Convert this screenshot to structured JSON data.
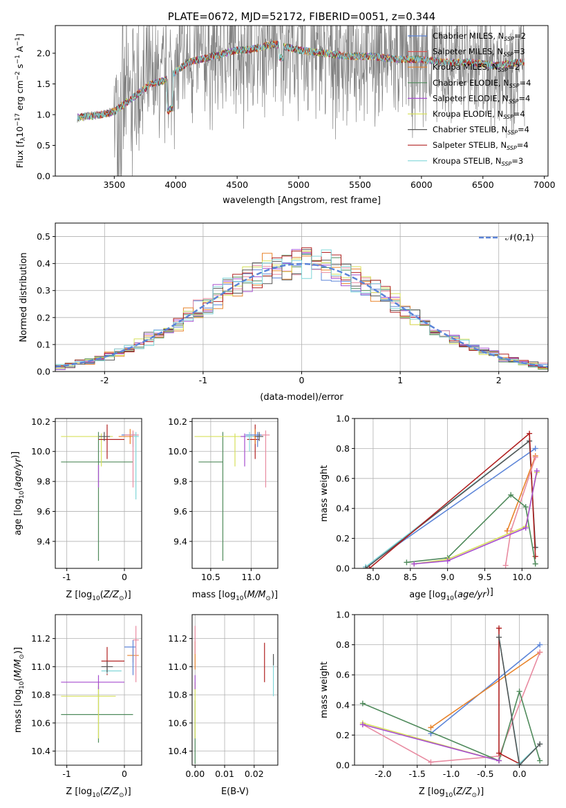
{
  "figure": {
    "background": "#ffffff"
  },
  "chart_data": [
    {
      "id": "spectrum",
      "type": "line",
      "title": "PLATE=0672, MJD=52172, FIBERID=0051, z=0.344",
      "xlabel": "wavelength [Angstrom, rest frame]",
      "ylabel": "Flux [f_λ10^-17 erg cm^-2 s^-1 A^-1]",
      "xlim": [
        3020,
        7030
      ],
      "ylim": [
        0,
        2.45
      ],
      "xticks": [
        3500,
        4000,
        4500,
        5000,
        5500,
        6000,
        6500,
        7000
      ],
      "yticks": [
        0.0,
        0.5,
        1.0,
        1.5,
        2.0
      ],
      "grid": false,
      "legend_position": "top-right",
      "data_color": "#808080",
      "data_continuum": {
        "x": [
          3200,
          3300,
          3400,
          3500,
          3600,
          3700,
          3800,
          3900,
          4000,
          4100,
          4200,
          4300,
          4400,
          4500,
          4600,
          4700,
          4800,
          4900,
          5000,
          5200,
          5400,
          5600,
          5800,
          6000,
          6200,
          6400,
          6600,
          6800
        ],
        "y": [
          0.95,
          0.98,
          1.0,
          1.05,
          1.2,
          1.35,
          1.5,
          1.55,
          1.7,
          1.85,
          1.9,
          1.95,
          2.0,
          2.05,
          2.05,
          2.1,
          2.15,
          2.1,
          2.05,
          2.0,
          1.95,
          1.95,
          1.9,
          1.9,
          1.85,
          1.85,
          1.8,
          1.85
        ]
      },
      "series": [
        {
          "name": "Chabrier MILES, N_SSP=2",
          "color": "#5b84d8"
        },
        {
          "name": "Salpeter MILES, N_SSP=3",
          "color": "#d9534f"
        },
        {
          "name": "Kroupa MILES, N_SSP=2",
          "color": "#e8832a"
        },
        {
          "name": "Chabrier ELODIE, N_SSP=4",
          "color": "#4f8a5b"
        },
        {
          "name": "Salpeter ELODIE, N_SSP=4",
          "color": "#a64ccf"
        },
        {
          "name": "Kroupa ELODIE, N_SSP=4",
          "color": "#d6e05a"
        },
        {
          "name": "Chabrier STELIB, N_SSP=4",
          "color": "#555555"
        },
        {
          "name": "Salpeter STELIB, N_SSP=4",
          "color": "#b02020"
        },
        {
          "name": "Kroupa STELIB, N_SSP=3",
          "color": "#7fd6d8"
        }
      ]
    },
    {
      "id": "residuals",
      "type": "histogram",
      "xlabel": "(data-model)/error",
      "ylabel": "Normed distribution",
      "xlim": [
        -2.5,
        2.5
      ],
      "ylim": [
        0,
        0.55
      ],
      "xticks": [
        -2,
        -1,
        0,
        1,
        2
      ],
      "yticks": [
        0.0,
        0.1,
        0.2,
        0.3,
        0.4,
        0.5
      ],
      "grid": true,
      "legend_position": "top-right",
      "reference": {
        "name": "𝒩(0,1)",
        "color": "#5b84d8",
        "mean": 0,
        "sigma": 1
      },
      "bin_width": 0.1,
      "colors": [
        "#5b84d8",
        "#e88aa0",
        "#e8832a",
        "#4f8a5b",
        "#a64ccf",
        "#d6e05a",
        "#555555",
        "#b02020",
        "#7fd6d8"
      ]
    },
    {
      "id": "age_vs_Z",
      "type": "errorbar",
      "xlabel": "Z [log10(Z/Z⊙)]",
      "ylabel": "age [log10(age/yr)]",
      "xlim": [
        -1.2,
        0.3
      ],
      "ylim": [
        9.22,
        10.22
      ],
      "xticks": [
        -1,
        0
      ],
      "yticks": [
        9.4,
        9.6,
        9.8,
        10.0,
        10.2
      ],
      "grid": true,
      "points": [
        {
          "color": "#4f8a5b",
          "x": -0.45,
          "xerr": [
            0.65,
            0.6
          ],
          "y": 9.93,
          "yerr": [
            0.66,
            0.2
          ]
        },
        {
          "color": "#d6e05a",
          "x": -0.4,
          "xerr": [
            0.7,
            0.2
          ],
          "y": 10.1,
          "yerr": [
            0.2,
            0.02
          ]
        },
        {
          "color": "#a64ccf",
          "x": -0.45,
          "xerr": [
            0.0,
            0.0
          ],
          "y": 9.83,
          "yerr": [
            0.07,
            0.08
          ]
        },
        {
          "color": "#b02020",
          "x": -0.3,
          "xerr": [
            0.15,
            0.3
          ],
          "y": 10.08,
          "yerr": [
            0.13,
            0.1
          ]
        },
        {
          "color": "#e8832a",
          "x": 0.1,
          "xerr": [
            0.2,
            0.05
          ],
          "y": 10.1,
          "yerr": [
            0.05,
            0.05
          ]
        },
        {
          "color": "#5b84d8",
          "x": 0.15,
          "xerr": [
            0.2,
            0.05
          ],
          "y": 10.11,
          "yerr": [
            0.08,
            0.02
          ]
        },
        {
          "color": "#e88aa0",
          "x": 0.15,
          "xerr": [
            0.15,
            0.1
          ],
          "y": 10.11,
          "yerr": [
            0.35,
            0.03
          ]
        },
        {
          "color": "#7fd6d8",
          "x": 0.2,
          "xerr": [
            0.05,
            0.05
          ],
          "y": 10.1,
          "yerr": [
            0.42,
            0.03
          ]
        },
        {
          "color": "#555555",
          "x": -0.35,
          "xerr": [
            0.1,
            0.1
          ],
          "y": 10.1,
          "yerr": [
            0.03,
            0.03
          ]
        }
      ]
    },
    {
      "id": "age_vs_mass",
      "type": "errorbar",
      "xlabel": "mass [log10(M/M⊙)]",
      "ylabel": "",
      "xlim": [
        10.27,
        11.33
      ],
      "ylim": [
        9.22,
        10.22
      ],
      "xticks": [
        10.5,
        11.0
      ],
      "yticks": [
        9.4,
        9.6,
        9.8,
        10.0,
        10.2
      ],
      "grid": true,
      "points": [
        {
          "color": "#4f8a5b",
          "x": 10.65,
          "xerr": [
            0.3,
            0.0
          ],
          "y": 9.93,
          "yerr": [
            0.66,
            0.2
          ]
        },
        {
          "color": "#d6e05a",
          "x": 10.8,
          "xerr": [
            0.5,
            0.1
          ],
          "y": 10.1,
          "yerr": [
            0.2,
            0.02
          ]
        },
        {
          "color": "#a64ccf",
          "x": 10.92,
          "xerr": [
            0.05,
            0.05
          ],
          "y": 10.1,
          "yerr": [
            0.2,
            0.02
          ]
        },
        {
          "color": "#b02020",
          "x": 11.05,
          "xerr": [
            0.1,
            0.05
          ],
          "y": 10.08,
          "yerr": [
            0.13,
            0.1
          ]
        },
        {
          "color": "#e8832a",
          "x": 11.05,
          "xerr": [
            0.1,
            0.05
          ],
          "y": 10.1,
          "yerr": [
            0.05,
            0.05
          ]
        },
        {
          "color": "#5b84d8",
          "x": 11.08,
          "xerr": [
            0.15,
            0.05
          ],
          "y": 10.11,
          "yerr": [
            0.08,
            0.02
          ]
        },
        {
          "color": "#e88aa0",
          "x": 11.18,
          "xerr": [
            0.05,
            0.05
          ],
          "y": 10.11,
          "yerr": [
            0.35,
            0.03
          ]
        },
        {
          "color": "#7fd6d8",
          "x": 10.98,
          "xerr": [
            0.05,
            0.05
          ],
          "y": 10.1,
          "yerr": [
            0.1,
            0.03
          ]
        },
        {
          "color": "#555555",
          "x": 11.1,
          "xerr": [
            0.05,
            0.05
          ],
          "y": 10.1,
          "yerr": [
            0.03,
            0.03
          ]
        }
      ]
    },
    {
      "id": "weight_vs_age",
      "type": "line",
      "xlabel": "age [log10(age/yr)]",
      "ylabel": "mass weight",
      "xlim": [
        7.75,
        10.35
      ],
      "ylim": [
        0,
        1.0
      ],
      "xticks": [
        8.0,
        8.5,
        9.0,
        9.5,
        10.0
      ],
      "yticks": [
        0.0,
        0.2,
        0.4,
        0.6,
        0.8,
        1.0
      ],
      "grid": true,
      "series": [
        {
          "color": "#5b84d8",
          "x": [
            7.9,
            10.18
          ],
          "y": [
            0.01,
            0.8
          ]
        },
        {
          "color": "#7fd6d8",
          "x": [
            7.9,
            10.1,
            10.18
          ],
          "y": [
            0.01,
            0.85,
            0.14
          ]
        },
        {
          "color": "#555555",
          "x": [
            7.9,
            10.1,
            10.18
          ],
          "y": [
            0.0,
            0.85,
            0.14
          ]
        },
        {
          "color": "#b02020",
          "x": [
            7.95,
            10.1,
            10.18
          ],
          "y": [
            0.0,
            0.9,
            0.08
          ]
        },
        {
          "color": "#e8832a",
          "x": [
            9.8,
            10.18
          ],
          "y": [
            0.25,
            0.75
          ]
        },
        {
          "color": "#e88aa0",
          "x": [
            9.78,
            9.85,
            10.18
          ],
          "y": [
            0.02,
            0.25,
            0.74
          ]
        },
        {
          "color": "#4f8a5b",
          "x": [
            8.45,
            9.0,
            9.85,
            10.05,
            10.18
          ],
          "y": [
            0.04,
            0.07,
            0.49,
            0.41,
            0.03
          ]
        },
        {
          "color": "#d6e05a",
          "x": [
            8.55,
            9.0,
            10.05,
            10.2
          ],
          "y": [
            0.03,
            0.06,
            0.28,
            0.64
          ]
        },
        {
          "color": "#a64ccf",
          "x": [
            8.55,
            9.0,
            10.05,
            10.2
          ],
          "y": [
            0.03,
            0.05,
            0.27,
            0.65
          ]
        }
      ]
    },
    {
      "id": "mass_vs_Z",
      "type": "errorbar",
      "xlabel": "Z [log10(Z/Z⊙)]",
      "ylabel": "mass [log10(M/M⊙)]",
      "xlim": [
        -1.2,
        0.3
      ],
      "ylim": [
        10.3,
        11.37
      ],
      "xticks": [
        -1,
        0
      ],
      "yticks": [
        10.4,
        10.6,
        10.8,
        11.0,
        11.2
      ],
      "grid": true,
      "points": [
        {
          "color": "#4f8a5b",
          "x": -0.45,
          "xerr": [
            0.65,
            0.6
          ],
          "y": 10.66,
          "yerr": [
            0.2,
            0.2
          ]
        },
        {
          "color": "#d6e05a",
          "x": -0.45,
          "xerr": [
            0.65,
            0.3
          ],
          "y": 10.79,
          "yerr": [
            0.3,
            0.1
          ]
        },
        {
          "color": "#a64ccf",
          "x": -0.45,
          "xerr": [
            0.65,
            0.45
          ],
          "y": 10.89,
          "yerr": [
            0.05,
            0.05
          ]
        },
        {
          "color": "#b02020",
          "x": -0.3,
          "xerr": [
            0.1,
            0.3
          ],
          "y": 11.04,
          "yerr": [
            0.1,
            0.1
          ]
        },
        {
          "color": "#7fd6d8",
          "x": -0.3,
          "xerr": [
            0.1,
            0.25
          ],
          "y": 10.97,
          "yerr": [
            0.02,
            0.02
          ]
        },
        {
          "color": "#e8832a",
          "x": 0.15,
          "xerr": [
            0.1,
            0.1
          ],
          "y": 11.08,
          "yerr": [
            0.05,
            0.05
          ]
        },
        {
          "color": "#5b84d8",
          "x": 0.15,
          "xerr": [
            0.15,
            0.05
          ],
          "y": 11.14,
          "yerr": [
            0.2,
            0.05
          ]
        },
        {
          "color": "#e88aa0",
          "x": 0.2,
          "xerr": [
            0.05,
            0.05
          ],
          "y": 11.19,
          "yerr": [
            0.3,
            0.1
          ]
        },
        {
          "color": "#555555",
          "x": -0.3,
          "xerr": [
            0.1,
            0.1
          ],
          "y": 11.0,
          "yerr": [
            0.04,
            0.04
          ]
        }
      ]
    },
    {
      "id": "mass_vs_ebv",
      "type": "errorbar",
      "xlabel": "E(B-V)",
      "ylabel": "",
      "xlim": [
        -0.001,
        0.028
      ],
      "ylim": [
        10.3,
        11.37
      ],
      "xticks": [
        0.0,
        0.01,
        0.02
      ],
      "yticks": [
        10.4,
        10.6,
        10.8,
        11.0,
        11.2
      ],
      "grid": true,
      "points": [
        {
          "color": "#4f8a5b",
          "x": 0.0,
          "xerr": [
            0,
            0
          ],
          "y": 10.66,
          "yerr": [
            0.35,
            0.1
          ]
        },
        {
          "color": "#d6e05a",
          "x": 0.0,
          "xerr": [
            0,
            0
          ],
          "y": 10.79,
          "yerr": [
            0.3,
            0.1
          ]
        },
        {
          "color": "#a64ccf",
          "x": 0.0,
          "xerr": [
            0,
            0
          ],
          "y": 10.89,
          "yerr": [
            0.05,
            0.05
          ]
        },
        {
          "color": "#e8832a",
          "x": 0.0,
          "xerr": [
            0,
            0
          ],
          "y": 11.08,
          "yerr": [
            0.1,
            0.1
          ]
        },
        {
          "color": "#e88aa0",
          "x": 0.0,
          "xerr": [
            0,
            0
          ],
          "y": 11.19,
          "yerr": [
            0.1,
            0.1
          ]
        },
        {
          "color": "#b02020",
          "x": 0.0235,
          "xerr": [
            0,
            0
          ],
          "y": 11.03,
          "yerr": [
            0.14,
            0.14
          ]
        },
        {
          "color": "#7fd6d8",
          "x": 0.0265,
          "xerr": [
            0,
            0
          ],
          "y": 10.93,
          "yerr": [
            0.14,
            0.14
          ]
        },
        {
          "color": "#555555",
          "x": 0.0265,
          "xerr": [
            0,
            0
          ],
          "y": 11.05,
          "yerr": [
            0.04,
            0.04
          ]
        }
      ]
    },
    {
      "id": "weight_vs_Z",
      "type": "line",
      "xlabel": "Z [log10(Z/Z⊙)]",
      "ylabel": "mass weight",
      "xlim": [
        -2.42,
        0.42
      ],
      "ylim": [
        0,
        1.0
      ],
      "xticks": [
        -2.0,
        -1.5,
        -1.0,
        -0.5,
        0.0
      ],
      "yticks": [
        0.0,
        0.2,
        0.4,
        0.6,
        0.8,
        1.0
      ],
      "grid": true,
      "series": [
        {
          "color": "#5b84d8",
          "x": [
            -1.3,
            0.3
          ],
          "y": [
            0.21,
            0.8
          ]
        },
        {
          "color": "#e8832a",
          "x": [
            -1.3,
            0.3
          ],
          "y": [
            0.25,
            0.75
          ]
        },
        {
          "color": "#e88aa0",
          "x": [
            -2.3,
            -1.3,
            -0.3,
            0.3
          ],
          "y": [
            0.27,
            0.02,
            0.06,
            0.75
          ]
        },
        {
          "color": "#4f8a5b",
          "x": [
            -2.3,
            -0.3,
            0.0,
            0.3
          ],
          "y": [
            0.41,
            0.03,
            0.49,
            0.03
          ]
        },
        {
          "color": "#d6e05a",
          "x": [
            -2.3,
            -0.3
          ],
          "y": [
            0.28,
            0.03
          ]
        },
        {
          "color": "#a64ccf",
          "x": [
            -2.3,
            -0.3
          ],
          "y": [
            0.27,
            0.03
          ]
        },
        {
          "color": "#b02020",
          "x": [
            -0.3,
            -0.3,
            0.0
          ],
          "y": [
            0.91,
            0.08,
            0.01
          ]
        },
        {
          "color": "#7fd6d8",
          "x": [
            -0.3,
            0.0,
            0.3
          ],
          "y": [
            0.85,
            0.01,
            0.14
          ]
        },
        {
          "color": "#555555",
          "x": [
            -0.3,
            0.0,
            0.3
          ],
          "y": [
            0.85,
            0.0,
            0.14
          ]
        }
      ]
    }
  ]
}
